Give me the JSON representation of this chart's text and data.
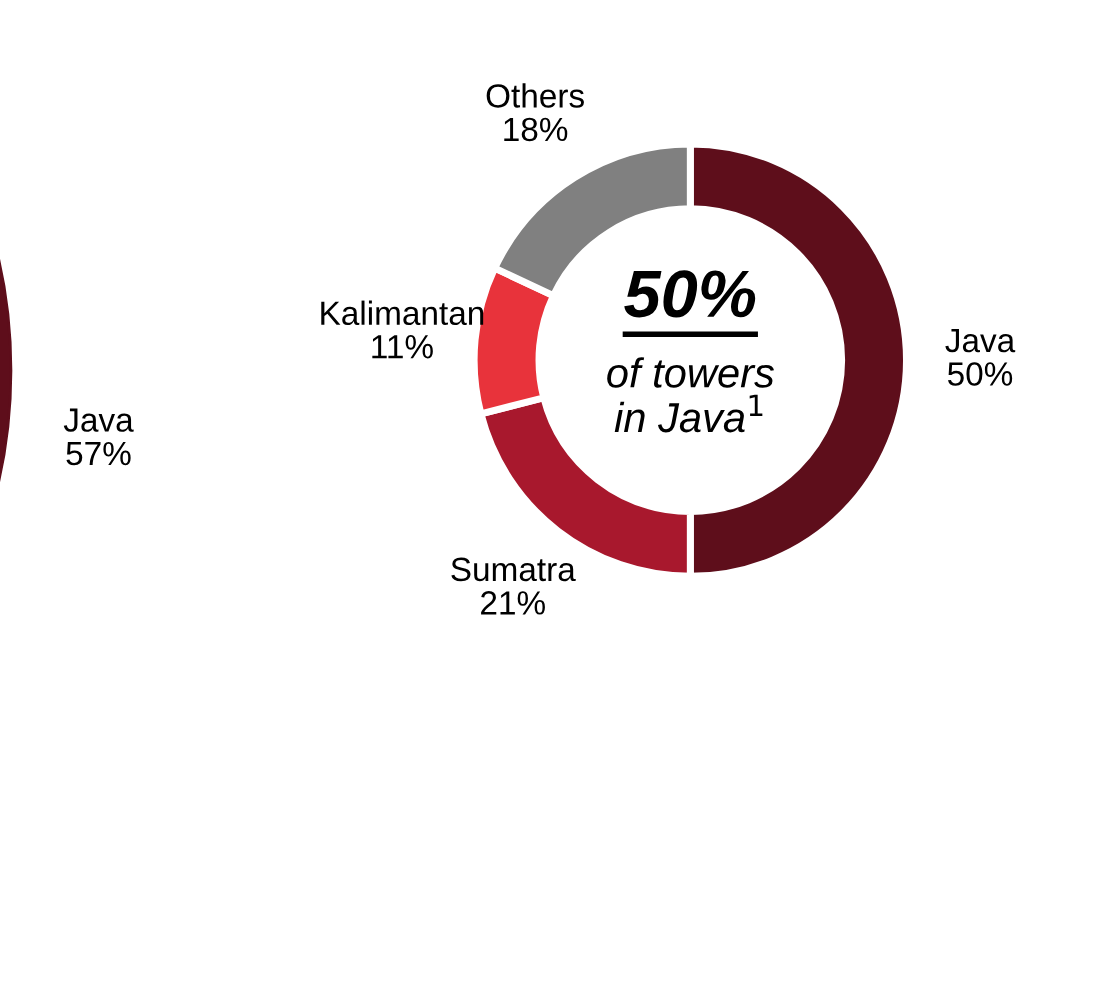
{
  "chart_data": [
    {
      "type": "other",
      "annotations": [
        "Java\n57%"
      ]
    },
    {
      "type": "donut",
      "categories": [
        "Java",
        "Sumatra",
        "Kalimantan",
        "Others"
      ],
      "values": [
        50,
        21,
        11,
        18
      ],
      "colors": [
        "#5e0e1b",
        "#a8182d",
        "#e8333b",
        "#808080"
      ],
      "value_labels": [
        "50%",
        "21%",
        "11%",
        "18%"
      ],
      "annotations": [
        "50%",
        "of towers\nin Java$^{1}$"
      ]
    }
  ]
}
